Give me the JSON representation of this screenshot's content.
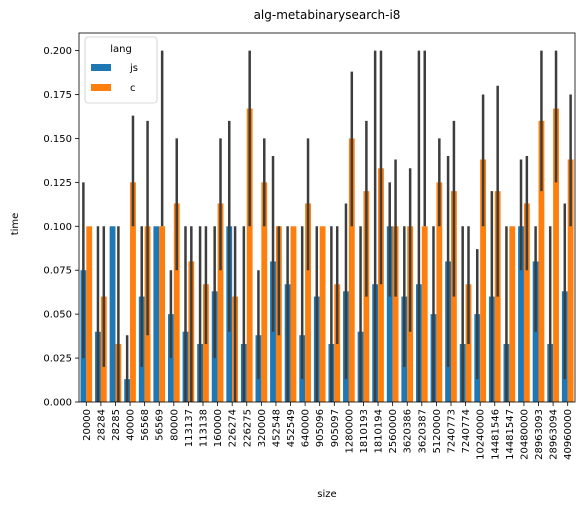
{
  "chart_data": {
    "type": "bar",
    "title": "alg-metabinarysearch-i8",
    "xlabel": "size",
    "ylabel": "time",
    "ylim": [
      0,
      0.21
    ],
    "yticks": [
      "0.000",
      "0.025",
      "0.050",
      "0.075",
      "0.100",
      "0.125",
      "0.150",
      "0.175",
      "0.200"
    ],
    "legend": {
      "title": "lang",
      "position": "top-left"
    },
    "categories": [
      "20000",
      "28284",
      "28285",
      "40000",
      "56568",
      "56569",
      "80000",
      "113137",
      "113138",
      "160000",
      "226274",
      "226275",
      "320000",
      "452548",
      "452549",
      "640000",
      "905096",
      "905097",
      "1280000",
      "1810193",
      "1810194",
      "2560000",
      "3620386",
      "3620387",
      "5120000",
      "7240773",
      "7240774",
      "10240000",
      "14481546",
      "14481547",
      "20480000",
      "28963093",
      "28963094",
      "40960000"
    ],
    "series": [
      {
        "name": "js",
        "color": "#1f77b4",
        "values": [
          0.075,
          0.04,
          0.1,
          0.013,
          0.06,
          0.1,
          0.05,
          0.04,
          0.033,
          0.063,
          0.1,
          0.033,
          0.038,
          0.08,
          0.067,
          0.038,
          0.06,
          0.033,
          0.063,
          0.04,
          0.067,
          0.1,
          0.06,
          0.067,
          0.05,
          0.08,
          0.033,
          0.05,
          0.06,
          0.033,
          0.1,
          0.08,
          0.033,
          0.063
        ],
        "err_low": [
          0.025,
          0.0,
          0.1,
          0.0,
          0.02,
          0.1,
          0.025,
          0.0,
          0.0,
          0.025,
          0.04,
          0.0,
          0.013,
          0.04,
          0.0,
          0.013,
          0.0,
          0.0,
          0.013,
          0.0,
          0.0,
          0.06,
          0.02,
          0.0,
          0.0,
          0.02,
          0.0,
          0.013,
          0.0,
          0.0,
          0.075,
          0.04,
          0.0,
          0.013
        ],
        "err_high": [
          0.125,
          0.1,
          0.1,
          0.038,
          0.1,
          0.1,
          0.075,
          0.1,
          0.1,
          0.1,
          0.16,
          0.1,
          0.075,
          0.14,
          0.1,
          0.1,
          0.1,
          0.1,
          0.113,
          0.1,
          0.2,
          0.125,
          0.1,
          0.2,
          0.1,
          0.14,
          0.1,
          0.087,
          0.12,
          0.1,
          0.138,
          0.1,
          0.1,
          0.113
        ]
      },
      {
        "name": "c",
        "color": "#ff7f0e",
        "values": [
          0.1,
          0.06,
          0.033,
          0.125,
          0.1,
          0.1,
          0.113,
          0.08,
          0.067,
          0.113,
          0.06,
          0.167,
          0.125,
          0.1,
          0.1,
          0.113,
          0.1,
          0.067,
          0.15,
          0.12,
          0.133,
          0.1,
          0.1,
          0.1,
          0.125,
          0.12,
          0.067,
          0.138,
          0.12,
          0.1,
          0.113,
          0.16,
          0.167,
          0.138
        ]
      }
    ]
  }
}
